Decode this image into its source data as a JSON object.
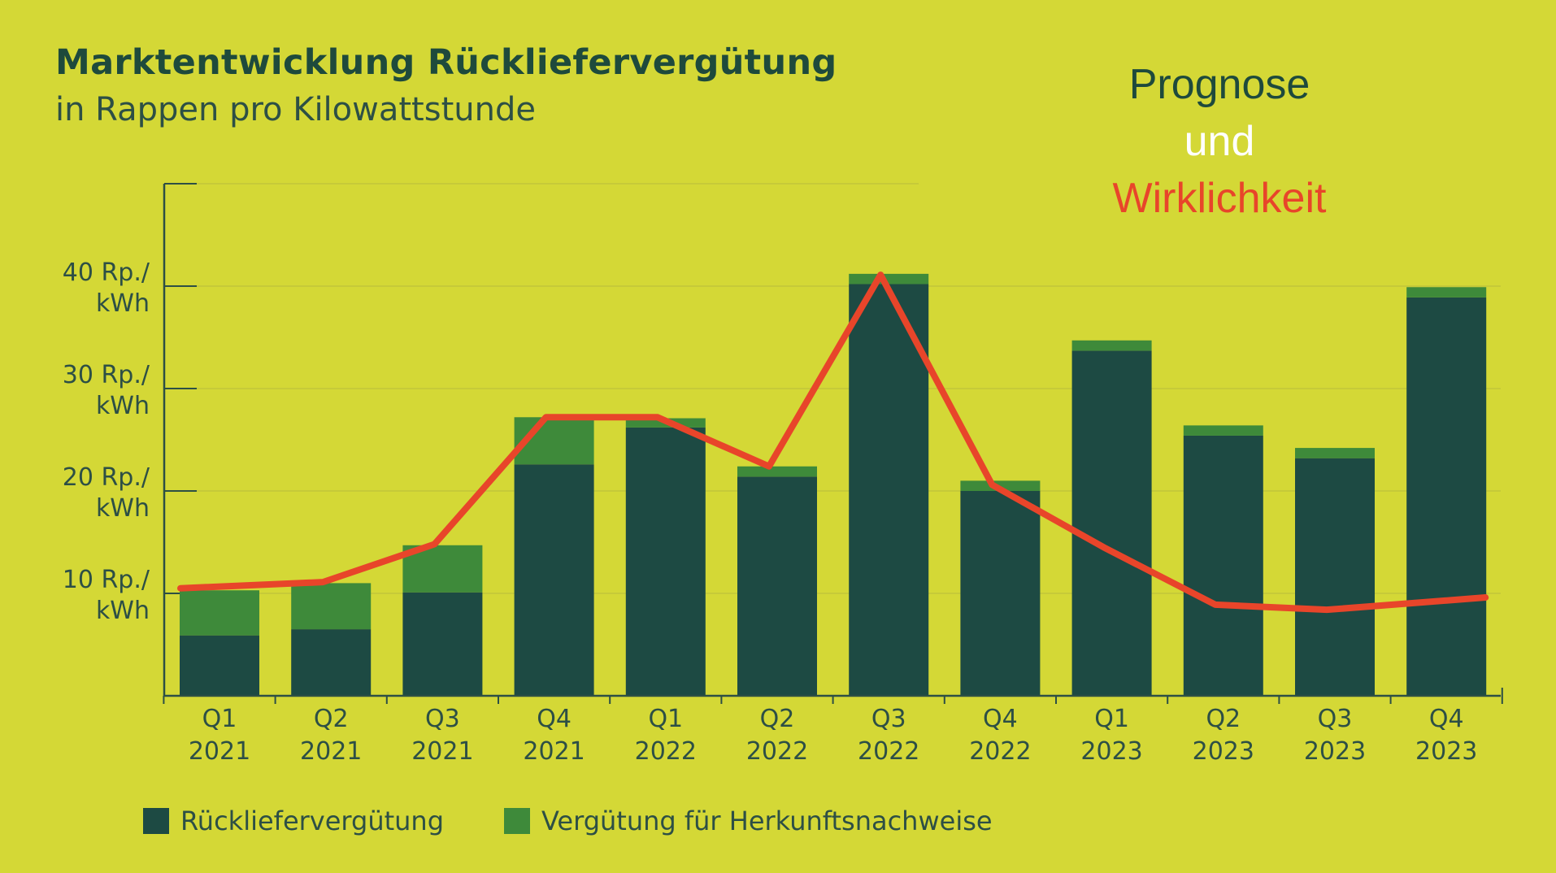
{
  "header": {
    "title": "Marktentwicklung Rückliefervergütung",
    "subtitle": "in Rappen pro Kilowattstunde"
  },
  "annotation": {
    "line1": "Prognose",
    "line2": "und",
    "line3": "Wirklichkeit",
    "color1": "#1e4a3c",
    "color2": "#ffffff",
    "color3": "#e8452a"
  },
  "legend": {
    "item1": "Rückliefervergütung",
    "item2": "Vergütung für Herkunftsnachweise"
  },
  "colors": {
    "background": "#d4d836",
    "base": "#1d4a43",
    "hkn": "#3e8a3a",
    "line": "#e8452a",
    "axis": "#2d4f45"
  },
  "chart_data": {
    "type": "bar",
    "stacked": true,
    "categories": [
      [
        "Q1",
        "2021"
      ],
      [
        "Q2",
        "2021"
      ],
      [
        "Q3",
        "2021"
      ],
      [
        "Q4",
        "2021"
      ],
      [
        "Q1",
        "2022"
      ],
      [
        "Q2",
        "2022"
      ],
      [
        "Q3",
        "2022"
      ],
      [
        "Q4",
        "2022"
      ],
      [
        "Q1",
        "2023"
      ],
      [
        "Q2",
        "2023"
      ],
      [
        "Q3",
        "2023"
      ],
      [
        "Q4",
        "2023"
      ]
    ],
    "series": [
      {
        "name": "Rückliefervergütung",
        "values": [
          5.9,
          6.5,
          10.1,
          22.6,
          26.2,
          21.4,
          40.2,
          20.0,
          33.7,
          25.4,
          23.2,
          38.9
        ]
      },
      {
        "name": "Vergütung für Herkunftsnachweise",
        "values": [
          4.4,
          4.5,
          4.6,
          4.6,
          0.9,
          1.0,
          1.0,
          1.0,
          1.0,
          1.0,
          1.0,
          1.0
        ]
      }
    ],
    "line": {
      "values": [
        10.5,
        11.1,
        14.8,
        27.2,
        27.2,
        22.4,
        41.1,
        20.6,
        14.5,
        8.9,
        8.4,
        9.6
      ]
    },
    "y_ticks": [
      [
        "10 Rp./",
        "kWh"
      ],
      [
        "20 Rp./",
        "kWh"
      ],
      [
        "30 Rp./",
        "kWh"
      ],
      [
        "40 Rp./",
        "kWh"
      ]
    ],
    "y_tick_values": [
      10,
      20,
      30,
      40
    ],
    "ylim": [
      0,
      50
    ],
    "grid": true
  }
}
